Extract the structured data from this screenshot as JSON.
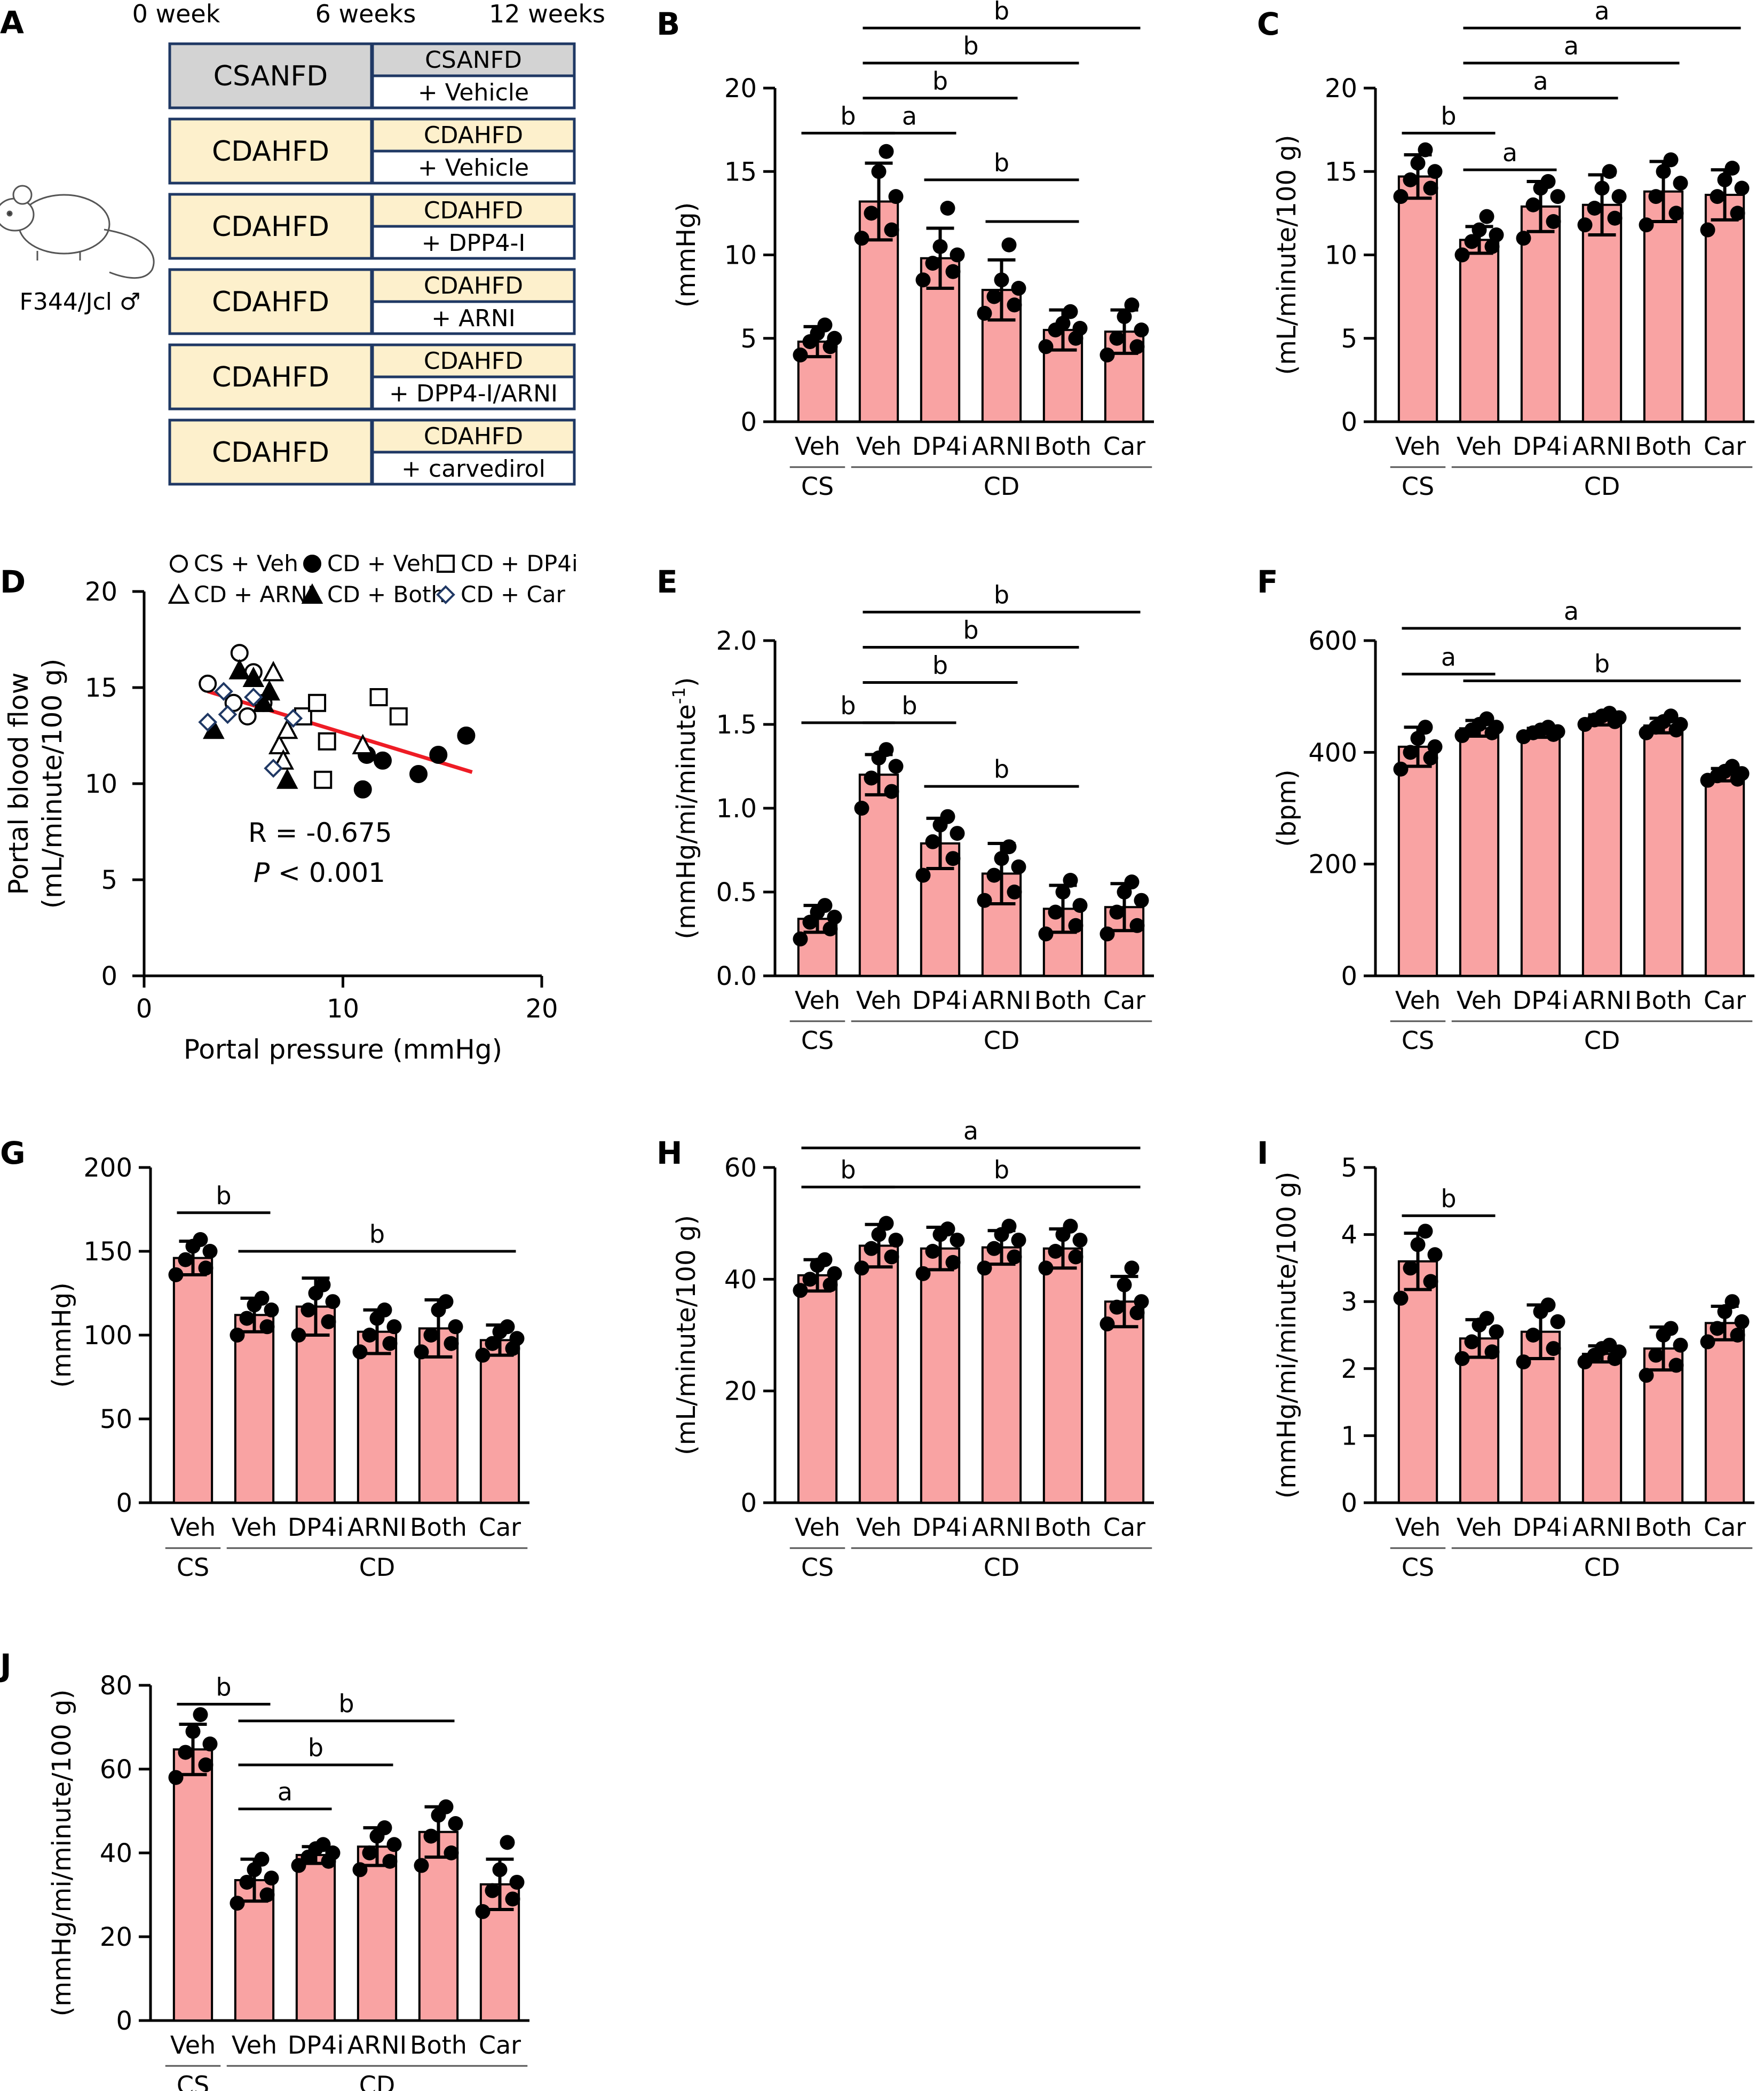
{
  "panel_a": {
    "letter": "A",
    "timeline": [
      "0 week",
      "6 weeks",
      "12 weeks"
    ],
    "rows": [
      {
        "first": "CSANFD",
        "second_top": "CSANFD",
        "second_bottom": "+ Vehicle",
        "color": "#d3d3d3"
      },
      {
        "first": "CDAHFD",
        "second_top": "CDAHFD",
        "second_bottom": "+ Vehicle",
        "color": "#fdf0cc"
      },
      {
        "first": "CDAHFD",
        "second_top": "CDAHFD",
        "second_bottom": "+ DPP4-I",
        "color": "#fdf0cc"
      },
      {
        "first": "CDAHFD",
        "second_top": "CDAHFD",
        "second_bottom": "+ ARNI",
        "color": "#fdf0cc"
      },
      {
        "first": "CDAHFD",
        "second_top": "CDAHFD",
        "second_bottom": "+ DPP4-I/ARNI",
        "color": "#fdf0cc"
      },
      {
        "first": "CDAHFD",
        "second_top": "CDAHFD",
        "second_bottom": "+ carvedirol",
        "color": "#fdf0cc"
      }
    ],
    "animal_label": "F344/Jcl ♂"
  },
  "colors": {
    "bar": "#f9a3a3",
    "fit_line": "#ee1c25",
    "box_border": "#1f3864",
    "ink": "#000000"
  },
  "chart_data": [
    {
      "panel": "B",
      "type": "bar",
      "categories": [
        "Veh",
        "Veh",
        "DP4i",
        "ARNI",
        "Both",
        "Car"
      ],
      "groups": [
        {
          "label": "CS",
          "members": [
            0
          ]
        },
        {
          "label": "CD",
          "members": [
            1,
            2,
            3,
            4,
            5
          ]
        }
      ],
      "values": [
        4.8,
        13.2,
        9.8,
        7.9,
        5.5,
        5.4
      ],
      "errors": [
        0.9,
        2.3,
        1.8,
        1.8,
        1.2,
        1.3
      ],
      "points": [
        [
          4.0,
          4.5,
          4.8,
          5.0,
          5.3,
          5.8
        ],
        [
          11.0,
          11.5,
          12.5,
          13.5,
          15.0,
          16.2
        ],
        [
          8.5,
          9.0,
          9.5,
          10.0,
          10.5,
          12.8
        ],
        [
          6.5,
          7.0,
          7.5,
          8.0,
          8.5,
          10.6
        ],
        [
          4.5,
          5.0,
          5.5,
          5.6,
          5.9,
          6.6
        ],
        [
          4.0,
          4.5,
          5.0,
          5.5,
          6.3,
          7.0
        ]
      ],
      "ylabel": "(mmHg)",
      "ylim": [
        0,
        20
      ],
      "yticks": [
        0,
        5,
        10,
        15,
        20
      ],
      "sig": [
        {
          "from": 0,
          "to": 1,
          "label": "b",
          "y": 17.3
        },
        {
          "from": 1,
          "to": 2,
          "label": "a",
          "y": 17.3
        },
        {
          "from": 1,
          "to": 3,
          "label": "b",
          "y": 19.4
        },
        {
          "from": 1,
          "to": 4,
          "label": "b",
          "y": 21.5
        },
        {
          "from": 1,
          "to": 5,
          "label": "b",
          "y": 23.6
        },
        {
          "from": 2,
          "to": 4,
          "label": "b",
          "y": 14.5
        },
        {
          "from": 3,
          "to": 4,
          "label": "",
          "y": 12.0
        }
      ]
    },
    {
      "panel": "C",
      "type": "bar",
      "categories": [
        "Veh",
        "Veh",
        "DP4i",
        "ARNI",
        "Both",
        "Car"
      ],
      "groups": [
        {
          "label": "CS",
          "members": [
            0
          ]
        },
        {
          "label": "CD",
          "members": [
            1,
            2,
            3,
            4,
            5
          ]
        }
      ],
      "values": [
        14.7,
        10.9,
        12.9,
        13.0,
        13.8,
        13.6
      ],
      "errors": [
        1.3,
        0.8,
        1.5,
        1.8,
        1.8,
        1.5
      ],
      "points": [
        [
          13.5,
          14.0,
          14.5,
          15.0,
          15.5,
          16.3
        ],
        [
          10.0,
          10.5,
          10.8,
          11.2,
          11.5,
          12.3
        ],
        [
          11.0,
          12.0,
          13.0,
          13.5,
          14.0,
          14.4
        ],
        [
          11.8,
          12.2,
          12.8,
          13.5,
          14.0,
          15.0
        ],
        [
          11.8,
          12.5,
          13.5,
          14.3,
          15.0,
          15.7
        ],
        [
          11.5,
          12.5,
          13.5,
          14.0,
          14.5,
          15.2
        ]
      ],
      "ylabel": "(mL/minute/100 g)",
      "ylim": [
        0,
        20
      ],
      "yticks": [
        0,
        5,
        10,
        15,
        20
      ],
      "sig": [
        {
          "from": 0,
          "to": 1,
          "label": "b",
          "y": 17.3
        },
        {
          "from": 1,
          "to": 2,
          "label": "a",
          "y": 15.1
        },
        {
          "from": 1,
          "to": 3,
          "label": "a",
          "y": 19.4
        },
        {
          "from": 1,
          "to": 4,
          "label": "a",
          "y": 21.5
        },
        {
          "from": 1,
          "to": 5,
          "label": "a",
          "y": 23.6
        }
      ]
    },
    {
      "panel": "D",
      "type": "scatter",
      "series": [
        {
          "name": "CS + Veh",
          "marker": "circle-open",
          "x": [
            3.2,
            4.5,
            4.8,
            5.2,
            5.5,
            6.0
          ],
          "y": [
            15.2,
            14.2,
            16.8,
            13.5,
            15.8,
            14.2
          ]
        },
        {
          "name": "CD + Veh",
          "marker": "circle-filled",
          "x": [
            11.0,
            11.2,
            12.0,
            13.8,
            14.8,
            16.2
          ],
          "y": [
            9.7,
            11.5,
            11.2,
            10.5,
            11.5,
            12.5
          ]
        },
        {
          "name": "CD + DP4i",
          "marker": "square-open",
          "x": [
            8.0,
            8.7,
            9.0,
            9.2,
            11.8,
            12.8
          ],
          "y": [
            13.5,
            14.2,
            10.2,
            12.2,
            14.5,
            13.5
          ]
        },
        {
          "name": "CD + ARNI",
          "marker": "triangle-open",
          "x": [
            6.0,
            6.5,
            6.8,
            7.0,
            7.2,
            11.0
          ],
          "y": [
            14.2,
            15.8,
            12.0,
            11.2,
            12.8,
            12.0
          ]
        },
        {
          "name": "CD + Both",
          "marker": "triangle-filled",
          "x": [
            3.5,
            4.8,
            5.5,
            6.0,
            6.3,
            7.2
          ],
          "y": [
            12.8,
            15.9,
            15.5,
            14.2,
            14.8,
            10.2
          ]
        },
        {
          "name": "CD + Car",
          "marker": "diamond-open",
          "x": [
            3.2,
            4.0,
            4.2,
            5.5,
            6.5,
            7.5
          ],
          "y": [
            13.2,
            14.8,
            13.6,
            14.5,
            10.8,
            13.4
          ]
        }
      ],
      "fit": {
        "x": [
          3.2,
          16.5
        ],
        "y": [
          14.8,
          10.6
        ]
      },
      "stats": {
        "r": "R = -0.675",
        "p_label": "P",
        "p_value": "< 0.001"
      },
      "xlabel": "Portal pressure (mmHg)",
      "ylabel_top": "Portal blood flow",
      "ylabel_bottom": "(mL/minute/100 g)",
      "xlim": [
        0,
        20
      ],
      "ylim": [
        0,
        20
      ],
      "xticks": [
        0,
        10,
        20
      ],
      "yticks": [
        0,
        5,
        10,
        15,
        20
      ]
    },
    {
      "panel": "E",
      "type": "bar",
      "categories": [
        "Veh",
        "Veh",
        "DP4i",
        "ARNI",
        "Both",
        "Car"
      ],
      "groups": [
        {
          "label": "CS",
          "members": [
            0
          ]
        },
        {
          "label": "CD",
          "members": [
            1,
            2,
            3,
            4,
            5
          ]
        }
      ],
      "values": [
        0.34,
        1.2,
        0.79,
        0.61,
        0.4,
        0.41
      ],
      "errors": [
        0.08,
        0.12,
        0.15,
        0.18,
        0.14,
        0.14
      ],
      "points": [
        [
          0.22,
          0.28,
          0.32,
          0.35,
          0.38,
          0.42
        ],
        [
          1.0,
          1.1,
          1.18,
          1.25,
          1.3,
          1.35
        ],
        [
          0.6,
          0.7,
          0.8,
          0.85,
          0.9,
          0.95
        ],
        [
          0.45,
          0.5,
          0.6,
          0.65,
          0.7,
          0.77
        ],
        [
          0.25,
          0.3,
          0.38,
          0.42,
          0.5,
          0.57
        ],
        [
          0.25,
          0.3,
          0.38,
          0.45,
          0.5,
          0.56
        ]
      ],
      "ylabel": "(mmHg/mi/minute",
      "ylabel_sup": "-1",
      "ylabel_end": ")",
      "ylim": [
        0,
        2.0
      ],
      "yticks": [
        "0.0",
        "0.5",
        "1.0",
        "1.5",
        "2.0"
      ],
      "sig": [
        {
          "from": 0,
          "to": 1,
          "label": "b",
          "y": 1.51
        },
        {
          "from": 1,
          "to": 2,
          "label": "b",
          "y": 1.51
        },
        {
          "from": 1,
          "to": 3,
          "label": "b",
          "y": 1.75
        },
        {
          "from": 1,
          "to": 4,
          "label": "b",
          "y": 1.96
        },
        {
          "from": 1,
          "to": 5,
          "label": "b",
          "y": 2.17
        },
        {
          "from": 2,
          "to": 4,
          "label": "b",
          "y": 1.13
        }
      ]
    },
    {
      "panel": "F",
      "type": "bar",
      "categories": [
        "Veh",
        "Veh",
        "DP4i",
        "ARNI",
        "Both",
        "Car"
      ],
      "groups": [
        {
          "label": "CS",
          "members": [
            0
          ]
        },
        {
          "label": "CD",
          "members": [
            1,
            2,
            3,
            4,
            5
          ]
        }
      ],
      "values": [
        410,
        443,
        435,
        458,
        448,
        360
      ],
      "errors": [
        35,
        14,
        8,
        9,
        13,
        11
      ],
      "points": [
        [
          370,
          390,
          400,
          410,
          425,
          445
        ],
        [
          430,
          435,
          440,
          445,
          450,
          460
        ],
        [
          428,
          432,
          435,
          437,
          440,
          445
        ],
        [
          450,
          455,
          458,
          462,
          465,
          470
        ],
        [
          435,
          440,
          445,
          450,
          455,
          465
        ],
        [
          350,
          352,
          358,
          362,
          366,
          375
        ]
      ],
      "ylabel": "(bpm)",
      "ylim": [
        0,
        600
      ],
      "yticks": [
        0,
        200,
        400,
        600
      ],
      "sig": [
        {
          "from": 0,
          "to": 1,
          "label": "a",
          "y": 540
        },
        {
          "from": 0,
          "to": 5,
          "label": "a",
          "y": 622
        },
        {
          "from": 1,
          "to": 5,
          "label": "b",
          "y": 528
        }
      ]
    },
    {
      "panel": "G",
      "type": "bar",
      "categories": [
        "Veh",
        "Veh",
        "DP4i",
        "ARNI",
        "Both",
        "Car"
      ],
      "groups": [
        {
          "label": "CS",
          "members": [
            0
          ]
        },
        {
          "label": "CD",
          "members": [
            1,
            2,
            3,
            4,
            5
          ]
        }
      ],
      "values": [
        146,
        112,
        117,
        102,
        104,
        97
      ],
      "errors": [
        10,
        10,
        17,
        13,
        17,
        9
      ],
      "points": [
        [
          136,
          140,
          145,
          150,
          153,
          157
        ],
        [
          100,
          105,
          110,
          115,
          118,
          122
        ],
        [
          100,
          108,
          115,
          120,
          125,
          130
        ],
        [
          90,
          95,
          100,
          105,
          110,
          115
        ],
        [
          90,
          95,
          100,
          105,
          115,
          120
        ],
        [
          88,
          92,
          95,
          98,
          102,
          105
        ]
      ],
      "ylabel": "(mmHg)",
      "ylim": [
        0,
        200
      ],
      "yticks": [
        0,
        50,
        100,
        150,
        200
      ],
      "sig": [
        {
          "from": 0,
          "to": 1,
          "label": "b",
          "y": 173
        },
        {
          "from": 1,
          "to": 5,
          "label": "b",
          "y": 150
        }
      ]
    },
    {
      "panel": "H",
      "type": "bar",
      "categories": [
        "Veh",
        "Veh",
        "DP4i",
        "ARNI",
        "Both",
        "Car"
      ],
      "groups": [
        {
          "label": "CS",
          "members": [
            0
          ]
        },
        {
          "label": "CD",
          "members": [
            1,
            2,
            3,
            4,
            5
          ]
        }
      ],
      "values": [
        40.7,
        46.0,
        45.5,
        45.7,
        45.5,
        36.0
      ],
      "errors": [
        2.8,
        3.8,
        3.8,
        3.0,
        3.5,
        4.5
      ],
      "points": [
        [
          38.0,
          39.0,
          40.0,
          41.0,
          42.5,
          43.5
        ],
        [
          42.0,
          44.0,
          45.5,
          47.0,
          48.0,
          50.0
        ],
        [
          41.0,
          43.0,
          45.0,
          47.0,
          48.0,
          49.0
        ],
        [
          42.0,
          44.0,
          45.5,
          47.0,
          48.0,
          49.5
        ],
        [
          42.0,
          44.0,
          45.0,
          47.0,
          48.0,
          49.5
        ],
        [
          32.0,
          34.0,
          35.0,
          36.0,
          39.0,
          42.0
        ]
      ],
      "ylabel": "(mL/minute/100 g)",
      "ylim": [
        0,
        60
      ],
      "yticks": [
        0,
        20,
        40,
        60
      ],
      "sig": [
        {
          "from": 0,
          "to": 1,
          "label": "b",
          "y": 56.5
        },
        {
          "from": 0,
          "to": 5,
          "label": "a",
          "y": 63.5
        },
        {
          "from": 1,
          "to": 5,
          "label": "b",
          "y": 56.5
        }
      ]
    },
    {
      "panel": "I",
      "type": "bar",
      "categories": [
        "Veh",
        "Veh",
        "DP4i",
        "ARNI",
        "Both",
        "Car"
      ],
      "groups": [
        {
          "label": "CS",
          "members": [
            0
          ]
        },
        {
          "label": "CD",
          "members": [
            1,
            2,
            3,
            4,
            5
          ]
        }
      ],
      "values": [
        3.6,
        2.45,
        2.55,
        2.22,
        2.3,
        2.68
      ],
      "errors": [
        0.42,
        0.28,
        0.4,
        0.12,
        0.32,
        0.25
      ],
      "points": [
        [
          3.05,
          3.3,
          3.5,
          3.7,
          3.85,
          4.05
        ],
        [
          2.15,
          2.25,
          2.4,
          2.55,
          2.65,
          2.75
        ],
        [
          2.1,
          2.3,
          2.5,
          2.7,
          2.85,
          2.95
        ],
        [
          2.1,
          2.15,
          2.2,
          2.25,
          2.3,
          2.35
        ],
        [
          1.9,
          2.05,
          2.2,
          2.35,
          2.5,
          2.6
        ],
        [
          2.4,
          2.5,
          2.6,
          2.7,
          2.85,
          3.0
        ]
      ],
      "ylabel": "(mmHg/mi/minute/100 g)",
      "ylim": [
        0,
        5
      ],
      "yticks": [
        0,
        1,
        2,
        3,
        4,
        5
      ],
      "sig": [
        {
          "from": 0,
          "to": 1,
          "label": "b",
          "y": 4.28
        }
      ]
    },
    {
      "panel": "J",
      "type": "bar",
      "categories": [
        "Veh",
        "Veh",
        "DP4i",
        "ARNI",
        "Both",
        "Car"
      ],
      "groups": [
        {
          "label": "CS",
          "members": [
            0
          ]
        },
        {
          "label": "CD",
          "members": [
            1,
            2,
            3,
            4,
            5
          ]
        }
      ],
      "values": [
        64.7,
        33.5,
        39.5,
        41.5,
        45.0,
        32.5
      ],
      "errors": [
        6.0,
        5.0,
        2.0,
        4.5,
        6.0,
        6.0
      ],
      "points": [
        [
          58.0,
          61.0,
          64.0,
          66.0,
          69.0,
          73.0
        ],
        [
          28.0,
          30.0,
          33.0,
          34.0,
          36.0,
          38.5
        ],
        [
          37.0,
          38.0,
          39.0,
          40.0,
          41.0,
          42.0
        ],
        [
          36.0,
          38.0,
          40.0,
          42.0,
          44.0,
          46.0
        ],
        [
          37.0,
          40.0,
          44.0,
          47.0,
          49.0,
          51.0
        ],
        [
          26.0,
          29.0,
          31.0,
          33.0,
          36.0,
          42.5
        ]
      ],
      "ylabel": "(mmHg/mi/minute/100 g)",
      "ylim": [
        0,
        80
      ],
      "yticks": [
        0,
        20,
        40,
        60,
        80
      ],
      "sig": [
        {
          "from": 0,
          "to": 1,
          "label": "b",
          "y": 75.5
        },
        {
          "from": 1,
          "to": 2,
          "label": "a",
          "y": 50.5
        },
        {
          "from": 1,
          "to": 3,
          "label": "b",
          "y": 61.0
        },
        {
          "from": 1,
          "to": 4,
          "label": "b",
          "y": 71.5
        }
      ]
    }
  ]
}
